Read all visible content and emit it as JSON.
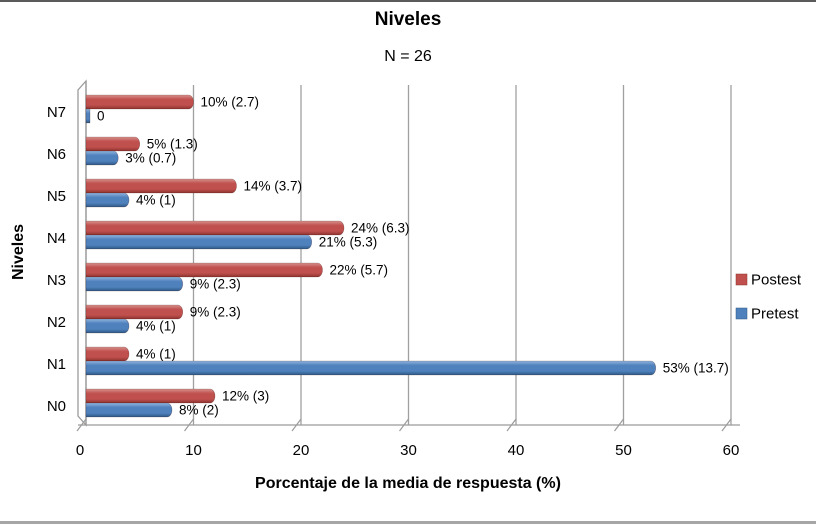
{
  "header": {
    "title": "Niveles",
    "subtitle": "N = 26"
  },
  "chart_data": {
    "type": "bar",
    "orientation": "horizontal",
    "title": "Niveles",
    "subtitle": "N = 26",
    "xlabel": "Porcentaje de la media de respuesta (%)",
    "ylabel": "Niveles",
    "xlim": [
      0,
      60
    ],
    "xticks": [
      0,
      10,
      20,
      30,
      40,
      50,
      60
    ],
    "grid": true,
    "legend_position": "right",
    "categories": [
      "N7",
      "N6",
      "N5",
      "N4",
      "N3",
      "N2",
      "N1",
      "N0"
    ],
    "series": [
      {
        "name": "Postest",
        "color": "#c0504d",
        "color_light": "#d7918e",
        "color_dark": "#8c322f",
        "values": [
          10,
          5,
          14,
          24,
          22,
          9,
          4,
          12
        ],
        "labels": [
          "10% (2.7)",
          "5% (1.3)",
          "14% (3.7)",
          "24% (6.3)",
          "22% (5.7)",
          "9% (2.3)",
          "4% (1)",
          "12% (3)"
        ]
      },
      {
        "name": "Pretest",
        "color": "#4f81bd",
        "color_light": "#8fb2dc",
        "color_dark": "#2e5884",
        "values": [
          0,
          3,
          4,
          21,
          9,
          4,
          53,
          8
        ],
        "labels": [
          "0",
          "3% (0.7)",
          "4% (1)",
          "21% (5.3)",
          "9% (2.3)",
          "4% (1)",
          "53% (13.7)",
          "8% (2)"
        ]
      }
    ],
    "colors": {
      "gridline": "#a0a0a0",
      "wall": "#9b9b9b",
      "text": "#000000"
    }
  }
}
